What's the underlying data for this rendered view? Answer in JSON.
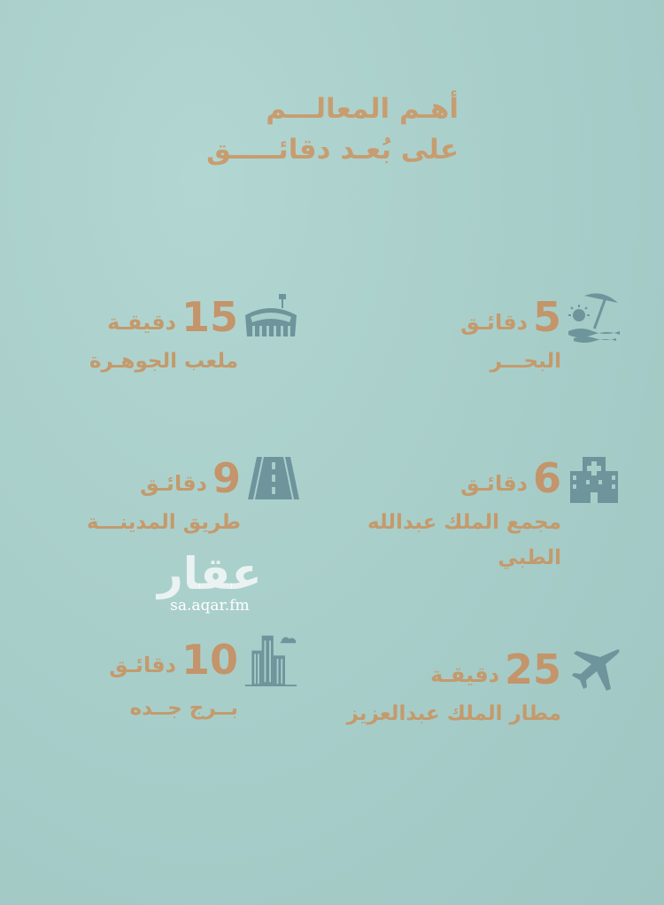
{
  "title": {
    "line1": "أهـم المعالـــم",
    "line2": "على بُعـد دقائـــــق"
  },
  "colors": {
    "background": "#a8ceca",
    "text": "#c49a6c",
    "icon": "#6e949c"
  },
  "items": [
    {
      "icon": "beach-umbrella-icon",
      "number": "5",
      "unit": "دقائـق",
      "label": "البحـــر"
    },
    {
      "icon": "stadium-icon",
      "number": "15",
      "unit": "دقيقـة",
      "label": "ملعب الجوهـرة"
    },
    {
      "icon": "hospital-icon",
      "number": "6",
      "unit": "دقائـق",
      "label": "مجمع الملك عبدالله الطبي"
    },
    {
      "icon": "road-icon",
      "number": "9",
      "unit": "دقائـق",
      "label": "طريق المدينـــة"
    },
    {
      "icon": "airplane-icon",
      "number": "25",
      "unit": "دقيقـة",
      "label": "مطار الملك عبدالعزيز"
    },
    {
      "icon": "tower-icon",
      "number": "10",
      "unit": "دقائـق",
      "label": "بــرج جــده"
    }
  ],
  "watermark": {
    "logo": "عقار",
    "url": "sa.aqar.fm"
  }
}
